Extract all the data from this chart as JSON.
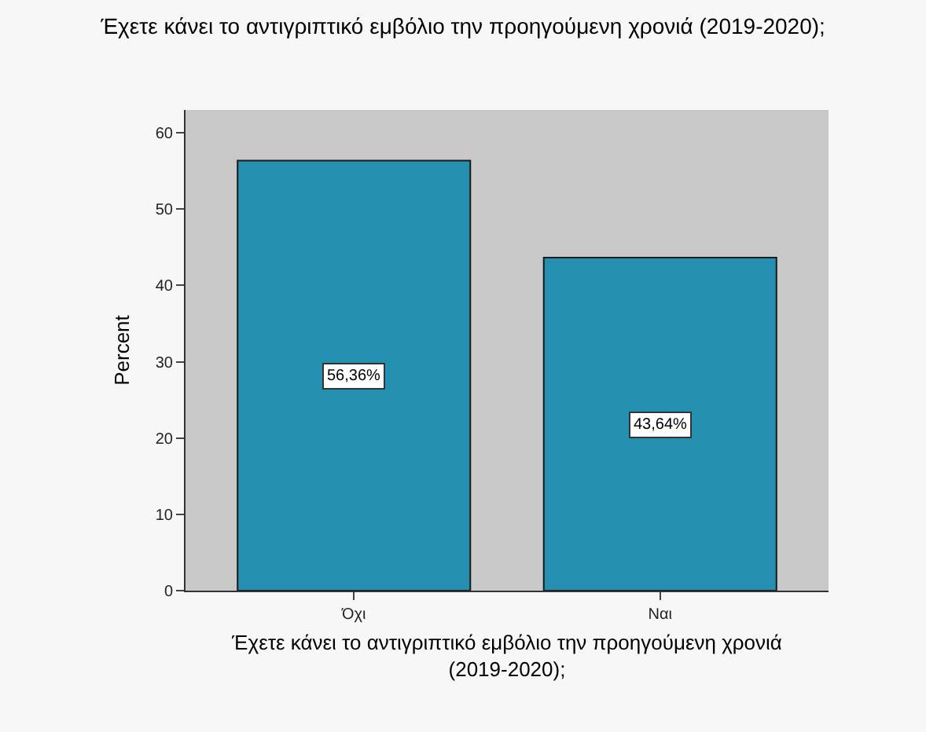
{
  "chart_data": {
    "type": "bar",
    "title": "Έχετε κάνει το αντιγριπτικό εμβόλιο την προηγούμενη χρονιά (2019-2020);",
    "xlabel": "Έχετε κάνει το αντιγριπτικό εμβόλιο την προηγούμενη χρονιά (2019-2020);",
    "ylabel": "Percent",
    "categories": [
      "Όχι",
      "Ναι"
    ],
    "values": [
      56.36,
      43.64
    ],
    "value_labels": [
      "56,36%",
      "43,64%"
    ],
    "color": "#248fb0",
    "ylim": [
      0,
      63
    ],
    "yticks": [
      0,
      10,
      20,
      30,
      40,
      50,
      60
    ],
    "grid": false
  }
}
